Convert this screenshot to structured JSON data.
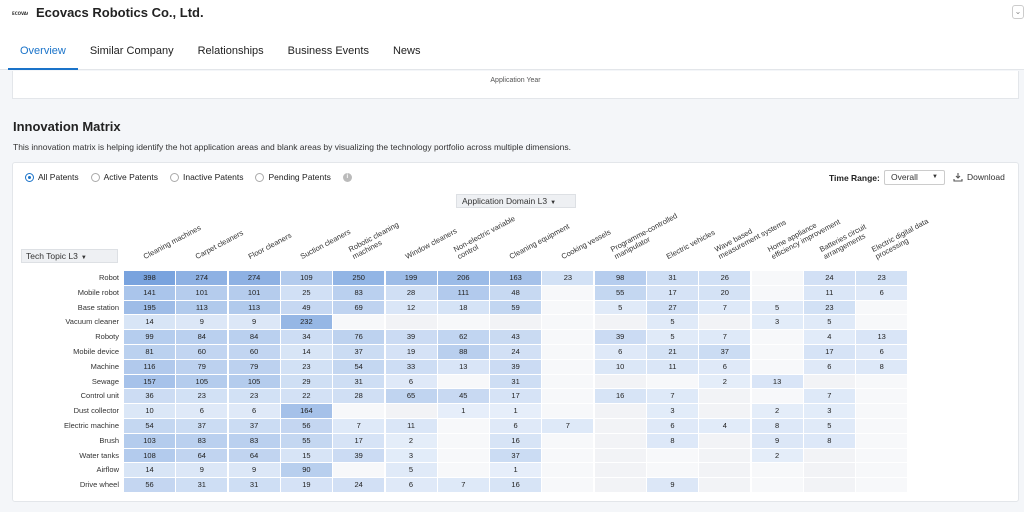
{
  "header": {
    "logo_text": "ECOVACS",
    "company": "Ecovacs Robotics Co., Ltd."
  },
  "tabs": [
    "Overview",
    "Similar Company",
    "Relationships",
    "Business Events",
    "News"
  ],
  "active_tab": 0,
  "top_card": {
    "axis_label": "Application Year"
  },
  "section": {
    "title": "Innovation Matrix",
    "description": "This innovation matrix is helping identify the hot application areas and blank areas by visualizing the technology portfolio across multiple dimensions."
  },
  "filters": {
    "radios": [
      "All Patents",
      "Active Patents",
      "Inactive Patents",
      "Pending Patents"
    ],
    "selected": 0,
    "time_range_label": "Time Range:",
    "time_range_value": "Overall",
    "download_label": "Download",
    "domain_select": "Application Domain L3",
    "topic_select": "Tech Topic L3"
  },
  "colors": {
    "accent": "#1a73c9"
  },
  "matrix": {
    "columns": [
      "Cleaning machines",
      "Carpet cleaners",
      "Floor cleaners",
      "Suction cleaners",
      "Robotic cleaning\nmachines",
      "Window cleaners",
      "Non-electric variable\ncontrol",
      "Cleaning equipment",
      "Cooking vessels",
      "Programme-controlled\nmanipulator",
      "Electric vehicles",
      "Wave based\nmeasurement systems",
      "Home appliance\nefficiency improvement",
      "Batteries circuit\narrangements",
      "Electric digital data\nprocessing"
    ],
    "rows": [
      {
        "label": "Robot",
        "values": [
          398,
          274,
          274,
          109,
          250,
          199,
          206,
          163,
          23,
          98,
          31,
          26,
          null,
          24,
          23
        ]
      },
      {
        "label": "Mobile robot",
        "values": [
          141,
          101,
          101,
          25,
          83,
          28,
          111,
          48,
          null,
          55,
          17,
          20,
          null,
          11,
          6
        ]
      },
      {
        "label": "Base station",
        "values": [
          195,
          113,
          113,
          49,
          69,
          12,
          18,
          59,
          null,
          5,
          27,
          7,
          5,
          23,
          null
        ]
      },
      {
        "label": "Vacuum cleaner",
        "values": [
          14,
          9,
          9,
          232,
          null,
          null,
          null,
          null,
          null,
          null,
          5,
          null,
          3,
          5,
          null
        ]
      },
      {
        "label": "Roboty",
        "values": [
          99,
          84,
          84,
          34,
          76,
          39,
          62,
          43,
          null,
          39,
          5,
          7,
          null,
          4,
          13
        ]
      },
      {
        "label": "Mobile device",
        "values": [
          81,
          60,
          60,
          14,
          37,
          19,
          88,
          24,
          null,
          6,
          21,
          37,
          null,
          17,
          6
        ]
      },
      {
        "label": "Machine",
        "values": [
          116,
          79,
          79,
          23,
          54,
          33,
          13,
          39,
          null,
          10,
          11,
          6,
          null,
          6,
          8
        ]
      },
      {
        "label": "Sewage",
        "values": [
          157,
          105,
          105,
          29,
          31,
          6,
          null,
          31,
          null,
          null,
          null,
          2,
          13,
          null,
          null
        ]
      },
      {
        "label": "Control unit",
        "values": [
          36,
          23,
          23,
          22,
          28,
          65,
          45,
          17,
          null,
          16,
          7,
          null,
          null,
          7,
          null
        ]
      },
      {
        "label": "Dust collector",
        "values": [
          10,
          6,
          6,
          164,
          null,
          null,
          1,
          1,
          null,
          null,
          3,
          null,
          2,
          3,
          null
        ]
      },
      {
        "label": "Electric machine",
        "values": [
          54,
          37,
          37,
          56,
          7,
          11,
          null,
          6,
          7,
          null,
          6,
          4,
          8,
          5,
          null
        ]
      },
      {
        "label": "Brush",
        "values": [
          103,
          83,
          83,
          55,
          17,
          2,
          null,
          16,
          null,
          null,
          8,
          null,
          9,
          8,
          null
        ]
      },
      {
        "label": "Water tanks",
        "values": [
          108,
          64,
          64,
          15,
          39,
          3,
          null,
          37,
          null,
          null,
          null,
          null,
          2,
          null,
          null
        ]
      },
      {
        "label": "Airflow",
        "values": [
          14,
          9,
          9,
          90,
          null,
          5,
          null,
          1,
          null,
          null,
          null,
          null,
          null,
          null,
          null
        ]
      },
      {
        "label": "Drive wheel",
        "values": [
          56,
          31,
          31,
          19,
          24,
          6,
          7,
          16,
          null,
          null,
          9,
          null,
          null,
          null,
          null
        ]
      }
    ]
  }
}
